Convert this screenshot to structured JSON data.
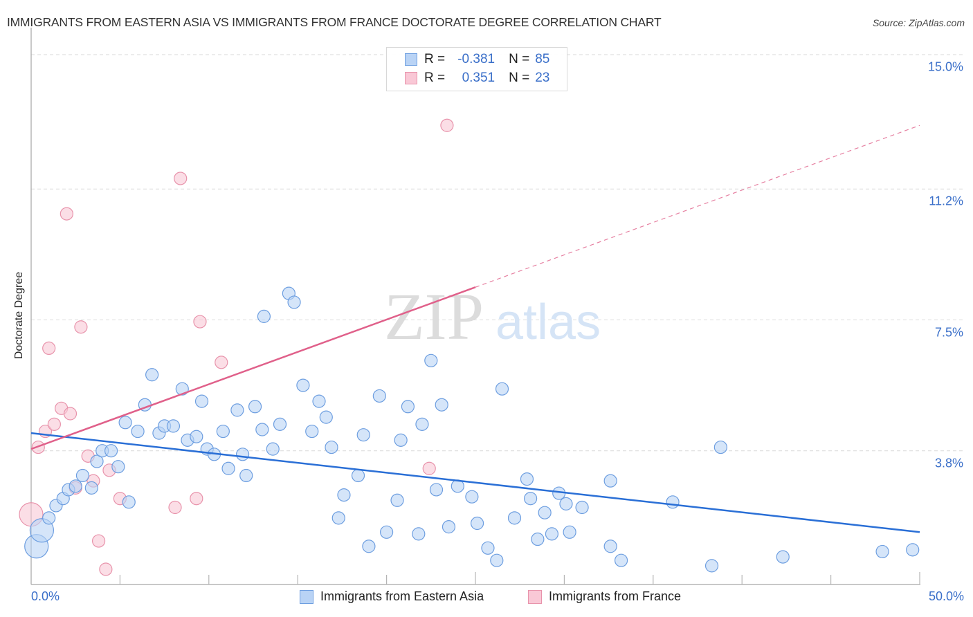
{
  "header": {
    "title": "IMMIGRANTS FROM EASTERN ASIA VS IMMIGRANTS FROM FRANCE DOCTORATE DEGREE CORRELATION CHART",
    "source": "Source: ZipAtlas.com"
  },
  "watermark": {
    "zip": "ZIP",
    "atlas": "atlas"
  },
  "legend": {
    "rows": [
      {
        "r_label": "R =",
        "r_value": "-0.381",
        "n_label": "N =",
        "n_value": "85"
      },
      {
        "r_label": "R =",
        "r_value": "0.351",
        "n_label": "N =",
        "n_value": "23"
      }
    ]
  },
  "chart_data": {
    "type": "scatter",
    "title": "IMMIGRANTS FROM EASTERN ASIA VS IMMIGRANTS FROM FRANCE DOCTORATE DEGREE CORRELATION CHART",
    "xlabel": "",
    "ylabel": "Doctorate Degree",
    "xlim": [
      0,
      50
    ],
    "ylim": [
      0,
      15
    ],
    "x_tick_labels": [
      "0.0%",
      "50.0%"
    ],
    "x_ticks": [
      0,
      5,
      10,
      15,
      20,
      25,
      30,
      35,
      40,
      45,
      50
    ],
    "y_ticks": [
      3.8,
      7.5,
      11.2,
      15.0
    ],
    "y_tick_labels": [
      "3.8%",
      "7.5%",
      "11.2%",
      "15.0%"
    ],
    "grid": "horizontal-dashed",
    "legend_position": "top-center and bottom",
    "colors": {
      "eastern_asia_fill": "#b9d3f5",
      "eastern_asia_stroke": "#6d9ee0",
      "eastern_asia_line": "#2a6fd6",
      "france_fill": "#f9c8d6",
      "france_stroke": "#e893ab",
      "france_line": "#e0608a",
      "tick_label": "#3a6fc9"
    },
    "series": [
      {
        "name": "Immigrants from Eastern Asia",
        "R": -0.381,
        "N": 85,
        "trend": {
          "x0": 0,
          "y0": 4.3,
          "x1": 50,
          "y1": 1.5,
          "dashed_from": null
        },
        "points": [
          {
            "x": 0.3,
            "y": 1.1,
            "big": true
          },
          {
            "x": 0.6,
            "y": 1.55,
            "big": true
          },
          {
            "x": 1.0,
            "y": 1.9
          },
          {
            "x": 1.4,
            "y": 2.25
          },
          {
            "x": 1.8,
            "y": 2.45
          },
          {
            "x": 2.1,
            "y": 2.7
          },
          {
            "x": 2.5,
            "y": 2.8
          },
          {
            "x": 2.9,
            "y": 3.1
          },
          {
            "x": 3.4,
            "y": 2.75
          },
          {
            "x": 3.7,
            "y": 3.5
          },
          {
            "x": 4.0,
            "y": 3.8
          },
          {
            "x": 4.5,
            "y": 3.8
          },
          {
            "x": 4.9,
            "y": 3.35
          },
          {
            "x": 5.3,
            "y": 4.6
          },
          {
            "x": 5.5,
            "y": 2.35
          },
          {
            "x": 6.0,
            "y": 4.35
          },
          {
            "x": 6.4,
            "y": 5.1
          },
          {
            "x": 6.8,
            "y": 5.95
          },
          {
            "x": 7.2,
            "y": 4.3
          },
          {
            "x": 7.5,
            "y": 4.5
          },
          {
            "x": 8.0,
            "y": 4.5
          },
          {
            "x": 8.5,
            "y": 5.55
          },
          {
            "x": 8.8,
            "y": 4.1
          },
          {
            "x": 9.3,
            "y": 4.2
          },
          {
            "x": 9.6,
            "y": 5.2
          },
          {
            "x": 9.9,
            "y": 3.85
          },
          {
            "x": 10.3,
            "y": 3.7
          },
          {
            "x": 10.8,
            "y": 4.35
          },
          {
            "x": 11.1,
            "y": 3.3
          },
          {
            "x": 11.6,
            "y": 4.95
          },
          {
            "x": 11.9,
            "y": 3.7
          },
          {
            "x": 12.1,
            "y": 3.1
          },
          {
            "x": 12.6,
            "y": 5.05
          },
          {
            "x": 13.0,
            "y": 4.4
          },
          {
            "x": 13.1,
            "y": 7.6
          },
          {
            "x": 13.6,
            "y": 3.85
          },
          {
            "x": 14.0,
            "y": 4.55
          },
          {
            "x": 14.5,
            "y": 8.25
          },
          {
            "x": 14.8,
            "y": 8.0
          },
          {
            "x": 15.3,
            "y": 5.65
          },
          {
            "x": 15.8,
            "y": 4.35
          },
          {
            "x": 16.2,
            "y": 5.2
          },
          {
            "x": 16.6,
            "y": 4.75
          },
          {
            "x": 16.9,
            "y": 3.9
          },
          {
            "x": 17.3,
            "y": 1.9
          },
          {
            "x": 17.6,
            "y": 2.55
          },
          {
            "x": 18.4,
            "y": 3.1
          },
          {
            "x": 18.7,
            "y": 4.25
          },
          {
            "x": 19.0,
            "y": 1.1
          },
          {
            "x": 19.6,
            "y": 5.35
          },
          {
            "x": 20.0,
            "y": 1.5
          },
          {
            "x": 20.6,
            "y": 2.4
          },
          {
            "x": 20.8,
            "y": 4.1
          },
          {
            "x": 21.2,
            "y": 5.05
          },
          {
            "x": 21.8,
            "y": 1.45
          },
          {
            "x": 22.0,
            "y": 4.55
          },
          {
            "x": 22.5,
            "y": 6.35
          },
          {
            "x": 22.8,
            "y": 2.7
          },
          {
            "x": 23.1,
            "y": 5.1
          },
          {
            "x": 23.5,
            "y": 1.65
          },
          {
            "x": 24.0,
            "y": 2.8
          },
          {
            "x": 24.8,
            "y": 2.5
          },
          {
            "x": 25.1,
            "y": 1.75
          },
          {
            "x": 25.7,
            "y": 1.05
          },
          {
            "x": 26.2,
            "y": 0.7
          },
          {
            "x": 26.5,
            "y": 5.55
          },
          {
            "x": 27.2,
            "y": 1.9
          },
          {
            "x": 27.9,
            "y": 3.0
          },
          {
            "x": 28.1,
            "y": 2.45
          },
          {
            "x": 28.5,
            "y": 1.3
          },
          {
            "x": 28.9,
            "y": 2.05
          },
          {
            "x": 29.3,
            "y": 1.45
          },
          {
            "x": 29.7,
            "y": 2.6
          },
          {
            "x": 30.1,
            "y": 2.3
          },
          {
            "x": 30.3,
            "y": 1.5
          },
          {
            "x": 31.0,
            "y": 2.2
          },
          {
            "x": 32.6,
            "y": 2.95
          },
          {
            "x": 32.6,
            "y": 1.1
          },
          {
            "x": 33.2,
            "y": 0.7
          },
          {
            "x": 36.1,
            "y": 2.35
          },
          {
            "x": 38.8,
            "y": 3.9
          },
          {
            "x": 38.3,
            "y": 0.55
          },
          {
            "x": 42.3,
            "y": 0.8
          },
          {
            "x": 47.9,
            "y": 0.95
          },
          {
            "x": 49.6,
            "y": 1.0
          }
        ]
      },
      {
        "name": "Immigrants from France",
        "R": 0.351,
        "N": 23,
        "trend": {
          "x0": 0,
          "y0": 3.85,
          "x1": 50,
          "y1": 13.0,
          "solid_until_x": 25.0
        },
        "points": [
          {
            "x": 0.0,
            "y": 2.0,
            "big": true
          },
          {
            "x": 0.4,
            "y": 3.9
          },
          {
            "x": 0.8,
            "y": 4.35
          },
          {
            "x": 1.0,
            "y": 6.7
          },
          {
            "x": 1.3,
            "y": 4.55
          },
          {
            "x": 1.7,
            "y": 5.0
          },
          {
            "x": 2.0,
            "y": 10.5
          },
          {
            "x": 2.2,
            "y": 4.85
          },
          {
            "x": 2.5,
            "y": 2.75
          },
          {
            "x": 2.8,
            "y": 7.3
          },
          {
            "x": 3.2,
            "y": 3.65
          },
          {
            "x": 3.5,
            "y": 2.95
          },
          {
            "x": 3.8,
            "y": 1.25
          },
          {
            "x": 4.2,
            "y": 0.45
          },
          {
            "x": 4.4,
            "y": 3.25
          },
          {
            "x": 5.0,
            "y": 2.45
          },
          {
            "x": 8.1,
            "y": 2.2
          },
          {
            "x": 8.4,
            "y": 11.5
          },
          {
            "x": 9.3,
            "y": 2.45
          },
          {
            "x": 9.5,
            "y": 7.45
          },
          {
            "x": 10.7,
            "y": 6.3
          },
          {
            "x": 22.4,
            "y": 3.3
          },
          {
            "x": 23.4,
            "y": 13.0
          }
        ]
      }
    ]
  },
  "bottom_legend": {
    "items": [
      {
        "label": "Immigrants from Eastern Asia"
      },
      {
        "label": "Immigrants from France"
      }
    ]
  }
}
